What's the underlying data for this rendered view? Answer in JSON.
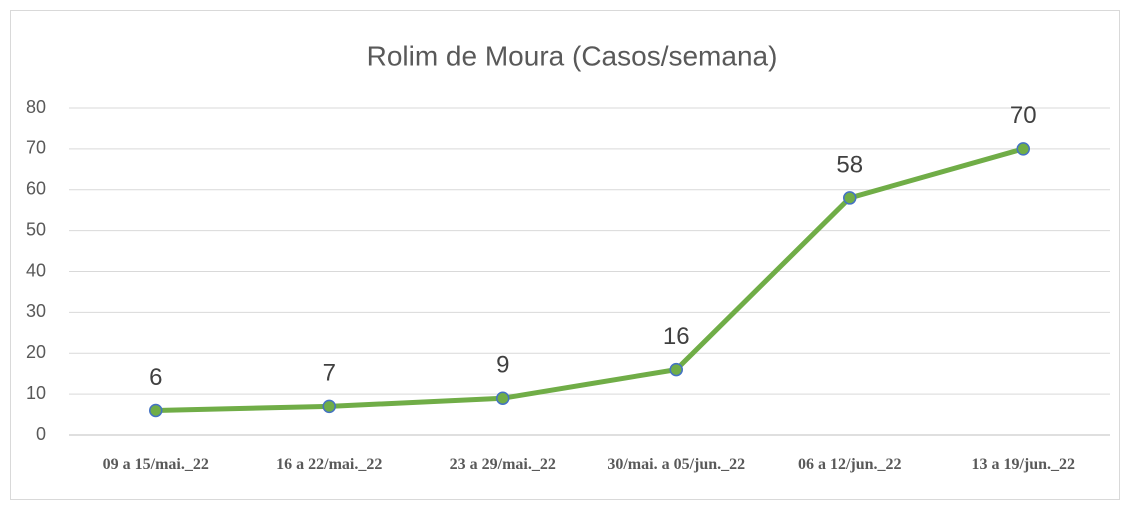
{
  "chart_data": {
    "type": "line",
    "title": "Rolim de Moura  (Casos/semana)",
    "categories": [
      "09 a 15/mai._22",
      "16 a 22/mai._22",
      "23 a 29/mai._22",
      "30/mai. a 05/jun._22",
      "06 a 12/jun._22",
      "13 a 19/jun._22"
    ],
    "values": [
      6,
      7,
      9,
      16,
      58,
      70
    ],
    "color": "#70ad47",
    "marker_edge_color": "#4472c4",
    "ylim": [
      0,
      80
    ],
    "yticks": [
      0,
      10,
      20,
      30,
      40,
      50,
      60,
      70,
      80
    ],
    "grid": true
  }
}
